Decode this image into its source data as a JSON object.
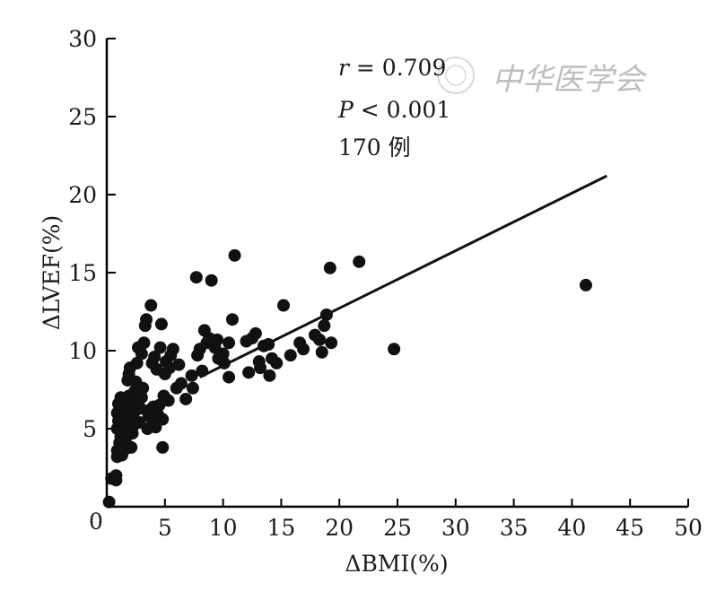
{
  "chart_data": {
    "type": "scatter",
    "xlabel": "ΔBMI(%)",
    "ylabel": "ΔLVEF(%)",
    "xlim": [
      0,
      50
    ],
    "ylim": [
      0,
      30
    ],
    "xticks": [
      0,
      5,
      10,
      15,
      20,
      25,
      30,
      35,
      40,
      45,
      50
    ],
    "yticks": [
      5,
      10,
      15,
      20,
      25,
      30
    ],
    "origin_label": "0",
    "annotation": {
      "r_symbol": "r",
      "r_rest": " = 0.709",
      "p_symbol": "P",
      "p_rest": " < 0.001",
      "n": "170 例"
    },
    "watermark": "中华医学会",
    "regression_line": {
      "x": [
        8.0,
        43.0
      ],
      "y": [
        8.3,
        21.2
      ]
    },
    "points": [
      [
        0.2,
        0.3
      ],
      [
        0.4,
        1.8
      ],
      [
        0.8,
        1.7
      ],
      [
        0.8,
        2.0
      ],
      [
        0.9,
        3.2
      ],
      [
        0.9,
        3.6
      ],
      [
        1.1,
        4.1
      ],
      [
        1.2,
        4.5
      ],
      [
        0.9,
        5.0
      ],
      [
        1.0,
        5.5
      ],
      [
        0.9,
        6.0
      ],
      [
        1.1,
        6.3
      ],
      [
        1.0,
        6.6
      ],
      [
        1.2,
        7.0
      ],
      [
        1.3,
        4.8
      ],
      [
        1.4,
        5.7
      ],
      [
        1.3,
        3.3
      ],
      [
        1.6,
        3.7
      ],
      [
        1.6,
        4.3
      ],
      [
        1.7,
        5.0
      ],
      [
        1.7,
        5.9
      ],
      [
        1.8,
        6.5
      ],
      [
        1.9,
        7.1
      ],
      [
        1.8,
        8.1
      ],
      [
        1.9,
        8.5
      ],
      [
        2.0,
        8.9
      ],
      [
        2.1,
        3.8
      ],
      [
        2.2,
        4.7
      ],
      [
        2.3,
        5.2
      ],
      [
        2.2,
        5.6
      ],
      [
        2.4,
        6.1
      ],
      [
        2.3,
        6.8
      ],
      [
        2.4,
        7.4
      ],
      [
        2.5,
        8.0
      ],
      [
        2.6,
        9.2
      ],
      [
        2.7,
        10.2
      ],
      [
        2.8,
        5.4
      ],
      [
        2.9,
        6.3
      ],
      [
        3.0,
        7.0
      ],
      [
        3.1,
        7.6
      ],
      [
        3.0,
        9.8
      ],
      [
        3.2,
        10.5
      ],
      [
        3.3,
        11.6
      ],
      [
        3.4,
        12.0
      ],
      [
        3.5,
        5.0
      ],
      [
        3.6,
        5.8
      ],
      [
        3.7,
        6.2
      ],
      [
        3.8,
        12.9
      ],
      [
        3.9,
        9.2
      ],
      [
        4.0,
        5.5
      ],
      [
        4.0,
        6.4
      ],
      [
        4.1,
        9.6
      ],
      [
        4.2,
        5.1
      ],
      [
        4.3,
        8.8
      ],
      [
        4.4,
        5.9
      ],
      [
        4.5,
        6.5
      ],
      [
        4.6,
        10.2
      ],
      [
        4.7,
        11.7
      ],
      [
        4.8,
        3.8
      ],
      [
        4.8,
        5.6
      ],
      [
        4.9,
        7.1
      ],
      [
        5.0,
        8.5
      ],
      [
        5.1,
        9.3
      ],
      [
        5.3,
        6.8
      ],
      [
        5.4,
        8.9
      ],
      [
        5.5,
        9.7
      ],
      [
        5.7,
        10.1
      ],
      [
        6.0,
        7.6
      ],
      [
        6.2,
        9.1
      ],
      [
        6.4,
        7.9
      ],
      [
        6.8,
        6.9
      ],
      [
        7.3,
        8.4
      ],
      [
        7.4,
        7.6
      ],
      [
        7.7,
        14.7
      ],
      [
        7.8,
        9.7
      ],
      [
        8.0,
        10.1
      ],
      [
        8.2,
        8.7
      ],
      [
        8.4,
        11.3
      ],
      [
        8.6,
        10.5
      ],
      [
        8.8,
        10.8
      ],
      [
        9.0,
        14.5
      ],
      [
        9.3,
        10.2
      ],
      [
        9.5,
        10.7
      ],
      [
        9.6,
        9.5
      ],
      [
        10.0,
        9.8
      ],
      [
        10.1,
        9.2
      ],
      [
        10.5,
        8.3
      ],
      [
        10.5,
        10.5
      ],
      [
        10.8,
        12.0
      ],
      [
        11.0,
        16.1
      ],
      [
        12.0,
        10.6
      ],
      [
        12.2,
        8.6
      ],
      [
        12.5,
        10.8
      ],
      [
        12.8,
        11.1
      ],
      [
        13.1,
        9.3
      ],
      [
        13.2,
        8.9
      ],
      [
        13.5,
        10.3
      ],
      [
        13.9,
        10.4
      ],
      [
        14.0,
        8.4
      ],
      [
        14.2,
        9.5
      ],
      [
        14.6,
        9.2
      ],
      [
        15.2,
        12.9
      ],
      [
        15.8,
        9.7
      ],
      [
        16.6,
        10.5
      ],
      [
        16.9,
        10.1
      ],
      [
        17.9,
        11.0
      ],
      [
        18.3,
        10.7
      ],
      [
        18.5,
        9.9
      ],
      [
        18.7,
        11.6
      ],
      [
        18.9,
        12.3
      ],
      [
        19.2,
        15.3
      ],
      [
        19.3,
        10.5
      ],
      [
        21.7,
        15.7
      ],
      [
        24.7,
        10.1
      ],
      [
        41.2,
        14.2
      ]
    ]
  }
}
